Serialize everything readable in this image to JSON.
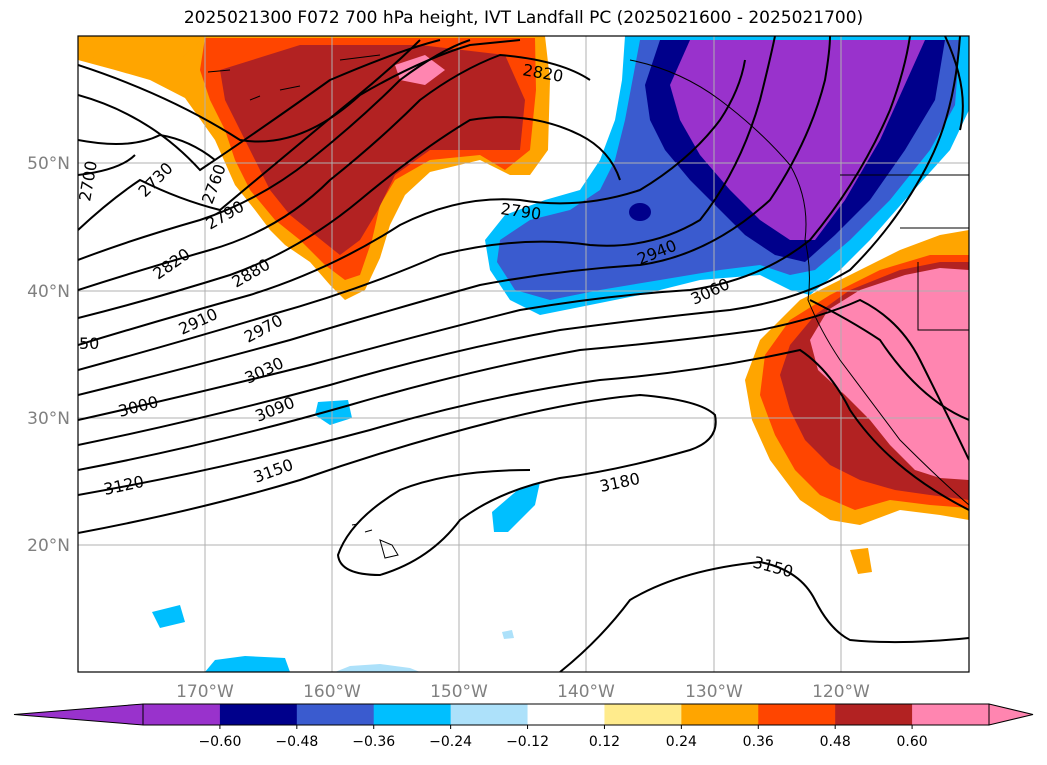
{
  "title": "2025021300 F072 700 hPa height, IVT Landfall PC (2025021600 - 2025021700)",
  "map": {
    "lon_labels": [
      "170°W",
      "160°W",
      "150°W",
      "140°W",
      "130°W",
      "120°W"
    ],
    "lat_labels": [
      "50°N",
      "40°N",
      "30°N",
      "20°N"
    ],
    "contour_labels": [
      "2700",
      "2730",
      "2760",
      "2790",
      "2820",
      "2880",
      "2910",
      "2970",
      "3030",
      "3000",
      "3090",
      "3120",
      "3150",
      "2790",
      "2820",
      "2940",
      "3060",
      "3180",
      "3150",
      "50"
    ]
  },
  "colorbar": {
    "ticks": [
      "−0.60",
      "−0.48",
      "−0.36",
      "−0.24",
      "−0.12",
      "0.12",
      "0.24",
      "0.36",
      "0.48",
      "0.60"
    ],
    "colors": {
      "under": "#9932CC",
      "bins": [
        "#9932CC",
        "#00008B",
        "#3A5BCF",
        "#00BFFF",
        "#ADE1FA",
        "#FFFFFF",
        "#FFEB8C",
        "#FFA500",
        "#FF4500",
        "#B22222",
        "#FF85B0"
      ],
      "over": "#FF85B0"
    }
  }
}
